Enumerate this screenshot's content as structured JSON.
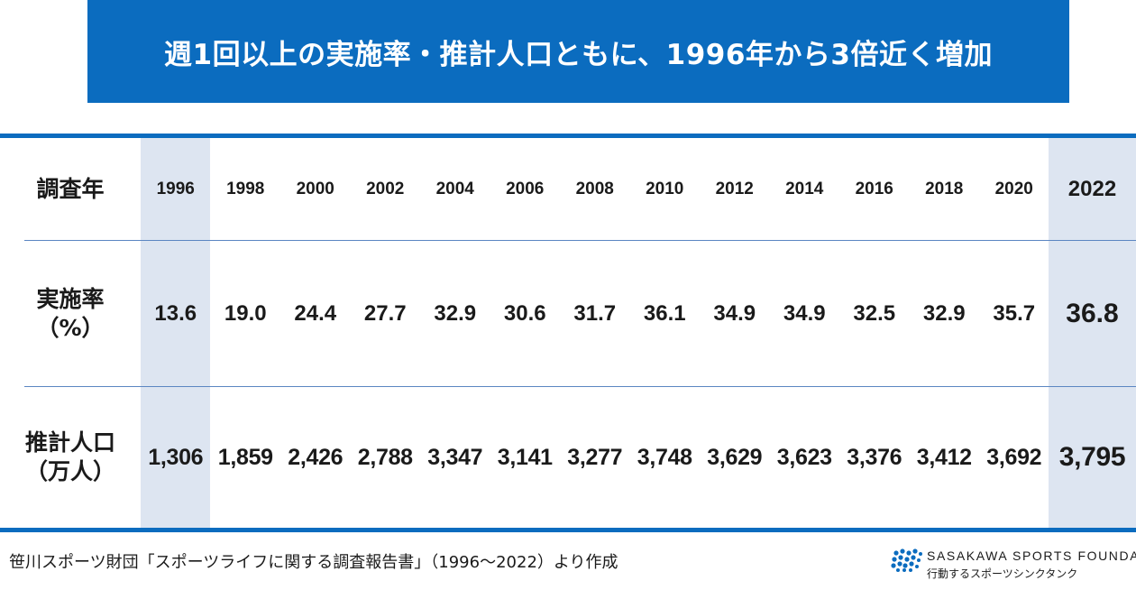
{
  "title": "週1回以上の実施率・推計人口ともに、1996年から3倍近く増加",
  "table": {
    "row_labels": {
      "year": "調査年",
      "rate_line1": "実施率",
      "rate_line2": "（%）",
      "pop_line1": "推計人口",
      "pop_line2": "（万人）"
    },
    "years": [
      "1996",
      "1998",
      "2000",
      "2002",
      "2004",
      "2006",
      "2008",
      "2010",
      "2012",
      "2014",
      "2016",
      "2018",
      "2020",
      "2022"
    ],
    "rates": [
      "13.6",
      "19.0",
      "24.4",
      "27.7",
      "32.9",
      "30.6",
      "31.7",
      "36.1",
      "34.9",
      "34.9",
      "32.5",
      "32.9",
      "35.7",
      "36.8"
    ],
    "population": [
      "1,306",
      "1,859",
      "2,426",
      "2,788",
      "3,347",
      "3,141",
      "3,277",
      "3,748",
      "3,629",
      "3,623",
      "3,376",
      "3,412",
      "3,692",
      "3,795"
    ],
    "highlight_color": "#dde5f1",
    "rule_color": "#0b6cbf"
  },
  "footer": {
    "source": "笹川スポーツ財団「スポーツライフに関する調査報告書」（1996～2022）より作成",
    "logo_name": "SASAKAWA SPORTS FOUNDATION",
    "logo_tagline": "行動するスポーツシンクタンク",
    "logo_icon": "ssf-logo-icon"
  }
}
